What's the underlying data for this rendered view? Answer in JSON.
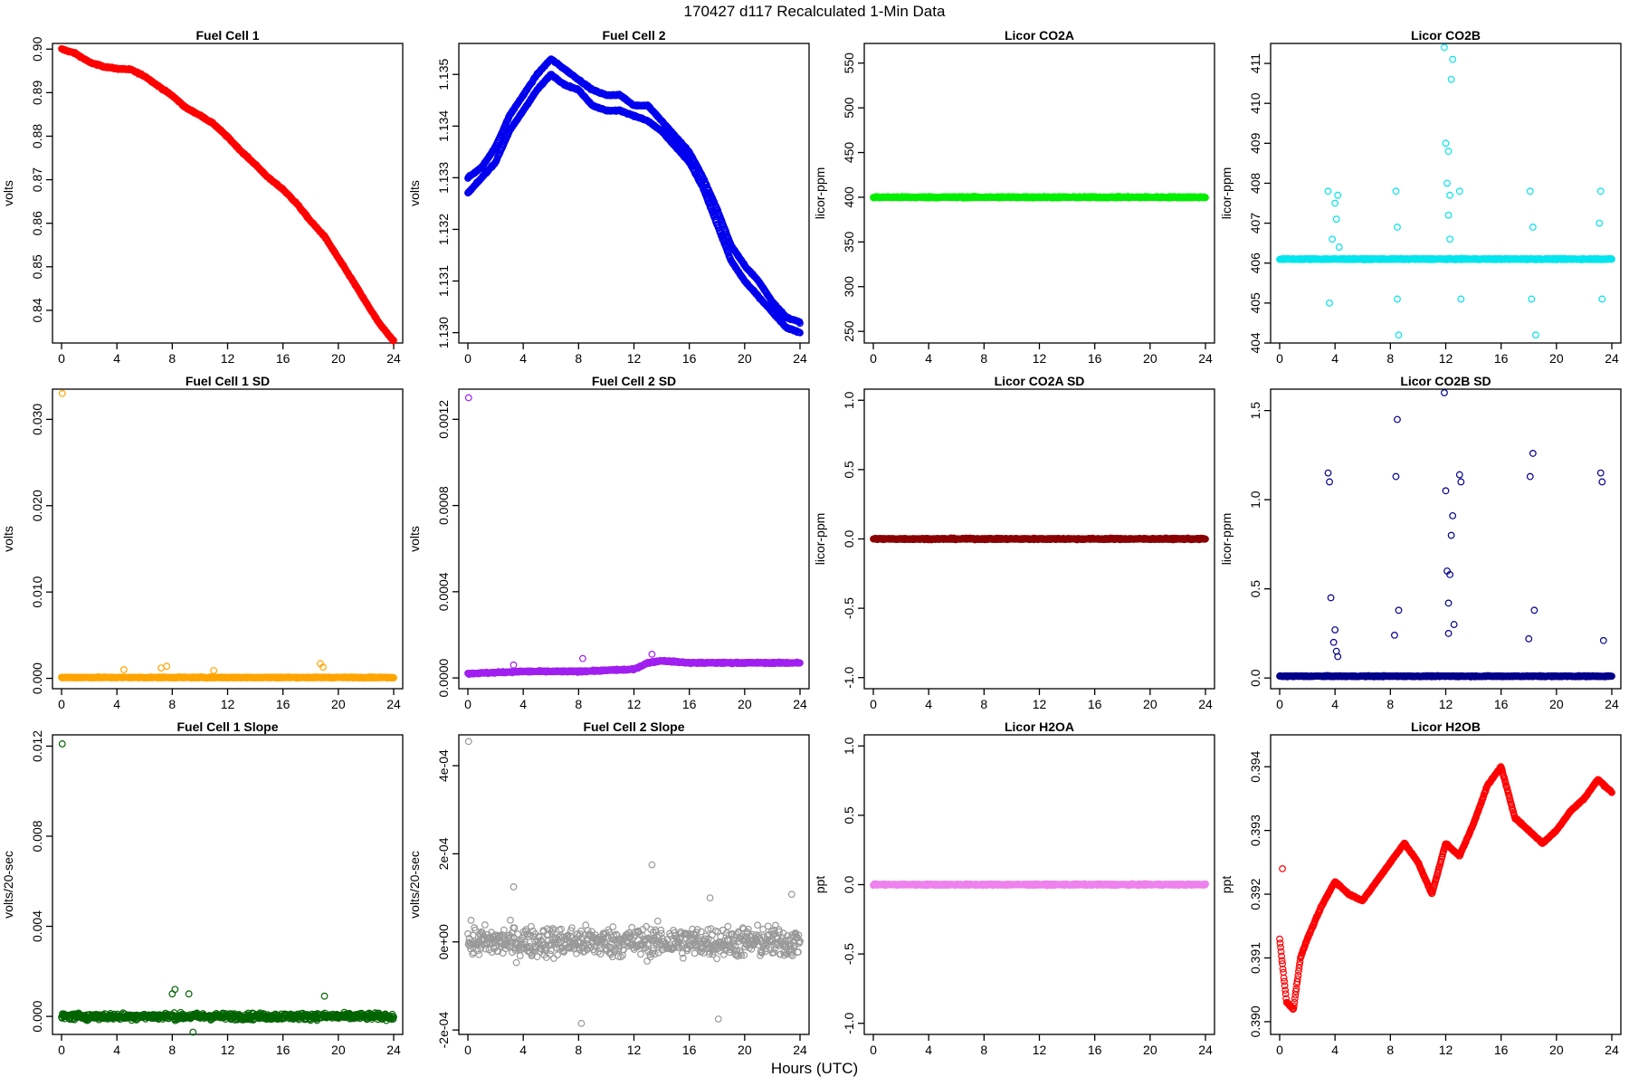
{
  "page": {
    "main_title": "170427   d117   Recalculated 1-Min Data",
    "x_axis_label": "Hours (UTC)"
  },
  "chart_data": [
    {
      "type": "scatter",
      "title": "Fuel Cell 1",
      "ylabel": "volts",
      "color": "#ff0000",
      "xlim": [
        0,
        24
      ],
      "ylim": [
        0.8325,
        0.9013
      ],
      "xticks": [
        0,
        4,
        8,
        12,
        16,
        20,
        24
      ],
      "yticks": [
        0.84,
        0.85,
        0.86,
        0.87,
        0.88,
        0.89,
        0.9
      ],
      "ytick_labels": [
        "0.84",
        "0.85",
        "0.86",
        "0.87",
        "0.88",
        "0.89",
        "0.90"
      ],
      "series": [
        {
          "x": [
            0,
            1,
            2,
            3,
            4,
            5,
            6,
            7,
            8,
            9,
            10,
            11,
            12,
            13,
            14,
            15,
            16,
            17,
            18,
            19,
            20,
            21,
            22,
            23,
            24
          ],
          "y": [
            0.9,
            0.899,
            0.897,
            0.896,
            0.8955,
            0.8953,
            0.8938,
            0.8915,
            0.8893,
            0.8865,
            0.8848,
            0.8828,
            0.8798,
            0.8765,
            0.8735,
            0.8703,
            0.8678,
            0.8645,
            0.8605,
            0.857,
            0.852,
            0.847,
            0.8418,
            0.8368,
            0.833
          ]
        }
      ]
    },
    {
      "type": "scatter",
      "title": "Fuel Cell 2",
      "ylabel": "volts",
      "color": "#0000ee",
      "xlim": [
        0,
        24
      ],
      "ylim": [
        1.1298,
        1.1356
      ],
      "xticks": [
        0,
        4,
        8,
        12,
        16,
        20,
        24
      ],
      "yticks": [
        1.13,
        1.131,
        1.132,
        1.133,
        1.134,
        1.135
      ],
      "ytick_labels": [
        "1.130",
        "1.131",
        "1.132",
        "1.133",
        "1.134",
        "1.135"
      ],
      "series": [
        {
          "name": "upper",
          "x": [
            0,
            1,
            2,
            3,
            4,
            5,
            6,
            7,
            8,
            9,
            10,
            11,
            12,
            13,
            14,
            15,
            16,
            17,
            18,
            19,
            20,
            21,
            22,
            23,
            24
          ],
          "y": [
            1.133,
            1.1332,
            1.1336,
            1.1342,
            1.1346,
            1.135,
            1.1353,
            1.1351,
            1.1349,
            1.1347,
            1.1346,
            1.1346,
            1.1344,
            1.1344,
            1.1341,
            1.1338,
            1.1335,
            1.133,
            1.1324,
            1.1317,
            1.1313,
            1.131,
            1.1306,
            1.1303,
            1.1302
          ]
        },
        {
          "name": "lower",
          "x": [
            0,
            1,
            2,
            3,
            4,
            5,
            6,
            7,
            8,
            9,
            10,
            11,
            12,
            13,
            14,
            15,
            16,
            17,
            18,
            19,
            20,
            21,
            22,
            23,
            24
          ],
          "y": [
            1.1327,
            1.133,
            1.1333,
            1.1339,
            1.1343,
            1.1347,
            1.135,
            1.1348,
            1.1347,
            1.1344,
            1.1343,
            1.1343,
            1.1342,
            1.1341,
            1.1339,
            1.1336,
            1.1333,
            1.1328,
            1.1321,
            1.1314,
            1.131,
            1.1307,
            1.1304,
            1.1301,
            1.13
          ]
        }
      ]
    },
    {
      "type": "scatter",
      "title": "Licor CO2A",
      "ylabel": "licor-ppm",
      "color": "#00ee00",
      "xlim": [
        0,
        24
      ],
      "ylim": [
        237,
        572
      ],
      "xticks": [
        0,
        4,
        8,
        12,
        16,
        20,
        24
      ],
      "yticks": [
        250,
        300,
        350,
        400,
        450,
        500,
        550
      ],
      "ytick_labels": [
        "250",
        "300",
        "350",
        "400",
        "450",
        "500",
        "550"
      ],
      "series": [
        {
          "x": [
            0,
            24
          ],
          "y": [
            400,
            400
          ]
        }
      ]
    },
    {
      "type": "scatter",
      "title": "Licor CO2B",
      "ylabel": "licor-ppm",
      "color": "#00e5ee",
      "xlim": [
        0,
        24
      ],
      "ylim": [
        404,
        411.5
      ],
      "xticks": [
        0,
        4,
        8,
        12,
        16,
        20,
        24
      ],
      "yticks": [
        404,
        405,
        406,
        407,
        408,
        409,
        410,
        411
      ],
      "ytick_labels": [
        "404",
        "405",
        "406",
        "407",
        "408",
        "409",
        "410",
        "411"
      ],
      "series": [
        {
          "baseline": 406.1,
          "outliers": [
            [
              3.5,
              407.8
            ],
            [
              3.6,
              405.0
            ],
            [
              3.8,
              406.6
            ],
            [
              4.0,
              407.5
            ],
            [
              4.1,
              407.1
            ],
            [
              4.2,
              407.7
            ],
            [
              4.3,
              406.4
            ],
            [
              8.4,
              407.8
            ],
            [
              8.5,
              405.1
            ],
            [
              8.6,
              404.2
            ],
            [
              8.5,
              406.9
            ],
            [
              11.9,
              411.4
            ],
            [
              12.0,
              409.0
            ],
            [
              12.1,
              408.0
            ],
            [
              12.2,
              407.2
            ],
            [
              12.3,
              406.6
            ],
            [
              12.4,
              410.6
            ],
            [
              12.5,
              411.1
            ],
            [
              12.2,
              408.8
            ],
            [
              12.3,
              407.7
            ],
            [
              13.0,
              407.8
            ],
            [
              13.1,
              405.1
            ],
            [
              18.1,
              407.8
            ],
            [
              18.2,
              405.1
            ],
            [
              18.5,
              404.2
            ],
            [
              18.3,
              406.9
            ],
            [
              23.2,
              407.8
            ],
            [
              23.3,
              405.1
            ],
            [
              23.1,
              407.0
            ]
          ]
        }
      ]
    },
    {
      "type": "scatter",
      "title": "Fuel Cell 1 SD",
      "ylabel": "volts",
      "color": "#ffa500",
      "xlim": [
        0,
        24
      ],
      "ylim": [
        -0.0012,
        0.0335
      ],
      "xticks": [
        0,
        4,
        8,
        12,
        16,
        20,
        24
      ],
      "yticks": [
        0.0,
        0.01,
        0.02,
        0.03
      ],
      "ytick_labels": [
        "0.000",
        "0.010",
        "0.020",
        "0.030"
      ],
      "series": [
        {
          "baseline": 0.0001,
          "outliers": [
            [
              0.05,
              0.033
            ],
            [
              7.2,
              0.0012
            ],
            [
              7.6,
              0.0014
            ],
            [
              18.7,
              0.0017
            ],
            [
              18.9,
              0.0013
            ],
            [
              11.0,
              0.0009
            ],
            [
              4.5,
              0.001
            ]
          ]
        }
      ]
    },
    {
      "type": "scatter",
      "title": "Fuel Cell 2 SD",
      "ylabel": "volts",
      "color": "#a020f0",
      "xlim": [
        0,
        24
      ],
      "ylim": [
        -5e-05,
        0.00134
      ],
      "xticks": [
        0,
        4,
        8,
        12,
        16,
        20,
        24
      ],
      "yticks": [
        0.0,
        0.0004,
        0.0008,
        0.0012
      ],
      "ytick_labels": [
        "0.0000",
        "0.0004",
        "0.0008",
        "0.0012"
      ],
      "series": [
        {
          "x": [
            0,
            4,
            8,
            12,
            13,
            14,
            16,
            18,
            20,
            22,
            24
          ],
          "y": [
            2e-05,
            3e-05,
            3e-05,
            4e-05,
            7e-05,
            8e-05,
            7e-05,
            7e-05,
            7e-05,
            7e-05,
            7e-05
          ],
          "outliers": [
            [
              0.05,
              0.0013
            ],
            [
              3.3,
              6e-05
            ],
            [
              8.3,
              9e-05
            ],
            [
              13.3,
              0.00011
            ]
          ]
        }
      ]
    },
    {
      "type": "scatter",
      "title": "Licor CO2A SD",
      "ylabel": "licor-ppm",
      "color": "#8b0000",
      "xlim": [
        0,
        24
      ],
      "ylim": [
        -1.08,
        1.08
      ],
      "xticks": [
        0,
        4,
        8,
        12,
        16,
        20,
        24
      ],
      "yticks": [
        -1.0,
        -0.5,
        0.0,
        0.5,
        1.0
      ],
      "ytick_labels": [
        "-1.0",
        "-0.5",
        "0.0",
        "0.5",
        "1.0"
      ],
      "series": [
        {
          "x": [
            0,
            24
          ],
          "y": [
            0,
            0
          ]
        }
      ]
    },
    {
      "type": "scatter",
      "title": "Licor CO2B SD",
      "ylabel": "licor-ppm",
      "color": "#00008b",
      "xlim": [
        0,
        24
      ],
      "ylim": [
        -0.06,
        1.62
      ],
      "xticks": [
        0,
        4,
        8,
        12,
        16,
        20,
        24
      ],
      "yticks": [
        0.0,
        0.5,
        1.0,
        1.5
      ],
      "ytick_labels": [
        "0.0",
        "0.5",
        "1.0",
        "1.5"
      ],
      "series": [
        {
          "baseline": 0.01,
          "outliers": [
            [
              3.5,
              1.15
            ],
            [
              3.6,
              1.1
            ],
            [
              3.7,
              0.45
            ],
            [
              3.9,
              0.2
            ],
            [
              4.0,
              0.27
            ],
            [
              4.1,
              0.15
            ],
            [
              4.2,
              0.12
            ],
            [
              8.3,
              0.24
            ],
            [
              8.4,
              1.13
            ],
            [
              8.5,
              1.45
            ],
            [
              8.6,
              0.38
            ],
            [
              11.9,
              1.6
            ],
            [
              12.0,
              1.05
            ],
            [
              12.1,
              0.6
            ],
            [
              12.2,
              0.42
            ],
            [
              12.3,
              0.58
            ],
            [
              12.4,
              0.8
            ],
            [
              12.5,
              0.91
            ],
            [
              12.6,
              0.3
            ],
            [
              12.2,
              0.25
            ],
            [
              13.0,
              1.14
            ],
            [
              13.1,
              1.1
            ],
            [
              18.1,
              1.13
            ],
            [
              18.3,
              1.26
            ],
            [
              18.4,
              0.38
            ],
            [
              18.0,
              0.22
            ],
            [
              23.2,
              1.15
            ],
            [
              23.3,
              1.1
            ],
            [
              23.4,
              0.21
            ]
          ]
        }
      ]
    },
    {
      "type": "scatter",
      "title": "Fuel Cell 1 Slope",
      "ylabel": "volts/20-sec",
      "color": "#006400",
      "xlim": [
        0,
        24
      ],
      "ylim": [
        -0.0008,
        0.0125
      ],
      "xticks": [
        0,
        4,
        8,
        12,
        16,
        20,
        24
      ],
      "yticks": [
        0.0,
        0.004,
        0.008,
        0.012
      ],
      "ytick_labels": [
        "0.000",
        "0.004",
        "0.008",
        "0.012"
      ],
      "series": [
        {
          "baseline": 0.0,
          "noise": 0.00025,
          "outliers": [
            [
              0.05,
              0.0121
            ],
            [
              8.0,
              0.001
            ],
            [
              8.2,
              0.0012
            ],
            [
              9.2,
              0.001
            ],
            [
              9.5,
              -0.0007
            ],
            [
              18.8,
              -0.0012
            ],
            [
              19.0,
              0.0009
            ]
          ]
        }
      ]
    },
    {
      "type": "scatter",
      "title": "Fuel Cell 2 Slope",
      "ylabel": "volts/20-sec",
      "color": "#999999",
      "xlim": [
        0,
        24
      ],
      "ylim": [
        -0.00021,
        0.00047
      ],
      "xticks": [
        0,
        4,
        8,
        12,
        16,
        20,
        24
      ],
      "yticks": [
        -0.0002,
        0.0,
        0.0002,
        0.0004
      ],
      "ytick_labels": [
        "-2e-04",
        "0e+00",
        "2e-04",
        "4e-04"
      ],
      "series": [
        {
          "baseline": 0.0,
          "noise": 6e-05,
          "outliers": [
            [
              0.05,
              0.000455
            ],
            [
              3.3,
              0.000125
            ],
            [
              8.2,
              -0.000185
            ],
            [
              13.3,
              0.000175
            ],
            [
              18.1,
              -0.000175
            ],
            [
              23.4,
              0.000108
            ],
            [
              17.5,
              0.0001
            ]
          ]
        }
      ]
    },
    {
      "type": "scatter",
      "title": "Licor H2OA",
      "ylabel": "ppt",
      "color": "#ee82ee",
      "xlim": [
        0,
        24
      ],
      "ylim": [
        -1.08,
        1.08
      ],
      "xticks": [
        0,
        4,
        8,
        12,
        16,
        20,
        24
      ],
      "yticks": [
        -1.0,
        -0.5,
        0.0,
        0.5,
        1.0
      ],
      "ytick_labels": [
        "-1.0",
        "-0.5",
        "0.0",
        "0.5",
        "1.0"
      ],
      "series": [
        {
          "x": [
            0,
            24
          ],
          "y": [
            0,
            0
          ]
        }
      ]
    },
    {
      "type": "scatter",
      "title": "Licor H2OB",
      "ylabel": "ppt",
      "color": "#ff0000",
      "xlim": [
        0,
        24
      ],
      "ylim": [
        0.3898,
        0.3945
      ],
      "xticks": [
        0,
        4,
        8,
        12,
        16,
        20,
        24
      ],
      "yticks": [
        0.39,
        0.391,
        0.392,
        0.393,
        0.394
      ],
      "ytick_labels": [
        "0.390",
        "0.391",
        "0.392",
        "0.393",
        "0.394"
      ],
      "series": [
        {
          "x": [
            0,
            0.5,
            1,
            1.5,
            2,
            3,
            4,
            5,
            6,
            7,
            8,
            9,
            10,
            11,
            12,
            13,
            14,
            15,
            16,
            17,
            18,
            19,
            20,
            21,
            22,
            23,
            24
          ],
          "y": [
            0.3913,
            0.3903,
            0.3902,
            0.391,
            0.3913,
            0.3918,
            0.3922,
            0.392,
            0.3919,
            0.3922,
            0.3925,
            0.3928,
            0.3925,
            0.392,
            0.3928,
            0.3926,
            0.3931,
            0.3937,
            0.394,
            0.3932,
            0.393,
            0.3928,
            0.393,
            0.3933,
            0.3935,
            0.3938,
            0.3936
          ],
          "outliers": [
            [
              0.2,
              0.3924
            ]
          ]
        }
      ]
    }
  ]
}
